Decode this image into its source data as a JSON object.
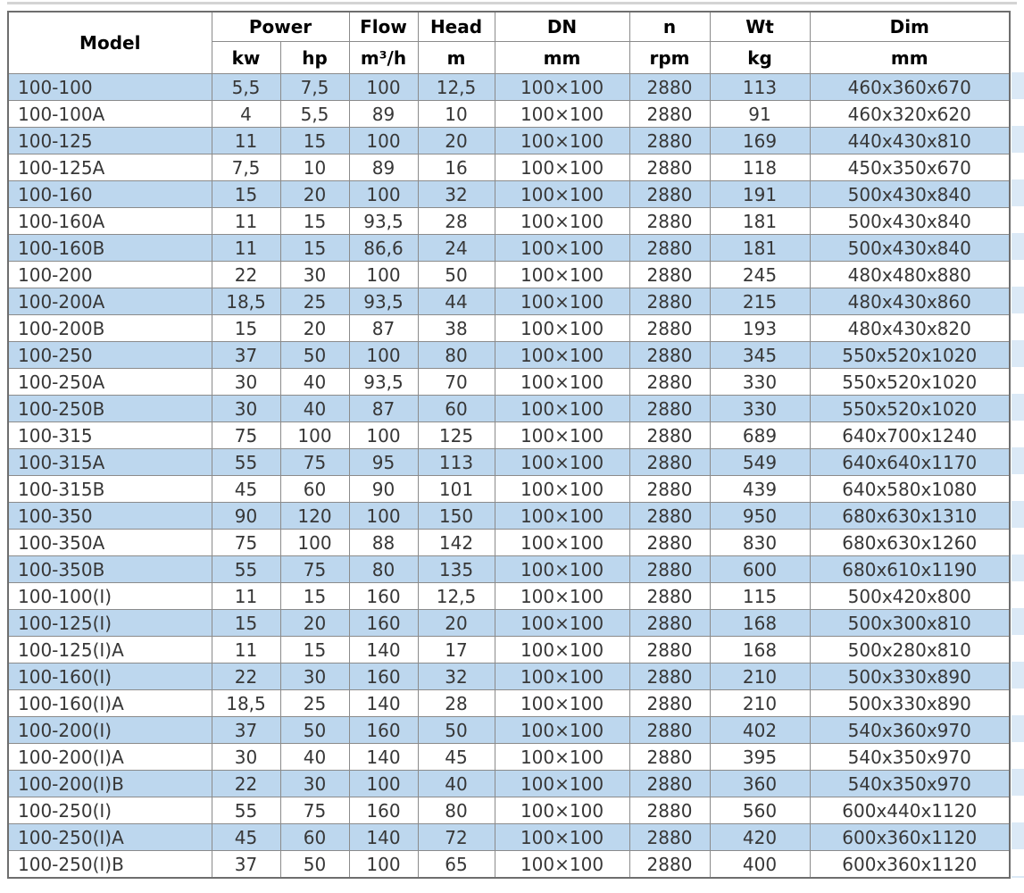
{
  "colors": {
    "row_highlight": "#BDD7EE",
    "row_plain": "#FFFFFF",
    "grid_border": "#8B8B8B",
    "outer_border": "#6E6E6E",
    "header_text": "#000000",
    "cell_text": "#373737"
  },
  "chart_data": {
    "type": "table",
    "title": "",
    "header": {
      "model": "Model",
      "power": "Power",
      "flow": "Flow",
      "head": "Head",
      "dn": "DN",
      "n": "n",
      "wt": "Wt",
      "dim": "Dim",
      "units": [
        "kw",
        "hp",
        "m³/h",
        "m",
        "mm",
        "rpm",
        "kg",
        "mm"
      ]
    },
    "column_keys": [
      "model",
      "power-kw",
      "power-hp",
      "flow",
      "head",
      "dn",
      "rpm",
      "weight",
      "dim"
    ],
    "rows": [
      [
        "100-100",
        "5,5",
        "7,5",
        "100",
        "12,5",
        "100×100",
        "2880",
        "113",
        "460x360x670"
      ],
      [
        "100-100A",
        "4",
        "5,5",
        "89",
        "10",
        "100×100",
        "2880",
        "91",
        "460x320x620"
      ],
      [
        "100-125",
        "11",
        "15",
        "100",
        "20",
        "100×100",
        "2880",
        "169",
        "440x430x810"
      ],
      [
        "100-125A",
        "7,5",
        "10",
        "89",
        "16",
        "100×100",
        "2880",
        "118",
        "450x350x670"
      ],
      [
        "100-160",
        "15",
        "20",
        "100",
        "32",
        "100×100",
        "2880",
        "191",
        "500x430x840"
      ],
      [
        "100-160A",
        "11",
        "15",
        "93,5",
        "28",
        "100×100",
        "2880",
        "181",
        "500x430x840"
      ],
      [
        "100-160B",
        "11",
        "15",
        "86,6",
        "24",
        "100×100",
        "2880",
        "181",
        "500x430x840"
      ],
      [
        "100-200",
        "22",
        "30",
        "100",
        "50",
        "100×100",
        "2880",
        "245",
        "480x480x880"
      ],
      [
        "100-200A",
        "18,5",
        "25",
        "93,5",
        "44",
        "100×100",
        "2880",
        "215",
        "480x430x860"
      ],
      [
        "100-200B",
        "15",
        "20",
        "87",
        "38",
        "100×100",
        "2880",
        "193",
        "480x430x820"
      ],
      [
        "100-250",
        "37",
        "50",
        "100",
        "80",
        "100×100",
        "2880",
        "345",
        "550x520x1020"
      ],
      [
        "100-250A",
        "30",
        "40",
        "93,5",
        "70",
        "100×100",
        "2880",
        "330",
        "550x520x1020"
      ],
      [
        "100-250B",
        "30",
        "40",
        "87",
        "60",
        "100×100",
        "2880",
        "330",
        "550x520x1020"
      ],
      [
        "100-315",
        "75",
        "100",
        "100",
        "125",
        "100×100",
        "2880",
        "689",
        "640x700x1240"
      ],
      [
        "100-315A",
        "55",
        "75",
        "95",
        "113",
        "100×100",
        "2880",
        "549",
        "640x640x1170"
      ],
      [
        "100-315B",
        "45",
        "60",
        "90",
        "101",
        "100×100",
        "2880",
        "439",
        "640x580x1080"
      ],
      [
        "100-350",
        "90",
        "120",
        "100",
        "150",
        "100×100",
        "2880",
        "950",
        "680x630x1310"
      ],
      [
        "100-350A",
        "75",
        "100",
        "88",
        "142",
        "100×100",
        "2880",
        "830",
        "680x630x1260"
      ],
      [
        "100-350B",
        "55",
        "75",
        "80",
        "135",
        "100×100",
        "2880",
        "600",
        "680x610x1190"
      ],
      [
        "100-100(I)",
        "11",
        "15",
        "160",
        "12,5",
        "100×100",
        "2880",
        "115",
        "500x420x800"
      ],
      [
        "100-125(I)",
        "15",
        "20",
        "160",
        "20",
        "100×100",
        "2880",
        "168",
        "500x300x810"
      ],
      [
        "100-125(I)A",
        "11",
        "15",
        "140",
        "17",
        "100×100",
        "2880",
        "168",
        "500x280x810"
      ],
      [
        "100-160(I)",
        "22",
        "30",
        "160",
        "32",
        "100×100",
        "2880",
        "210",
        "500x330x890"
      ],
      [
        "100-160(I)A",
        "18,5",
        "25",
        "140",
        "28",
        "100×100",
        "2880",
        "210",
        "500x330x890"
      ],
      [
        "100-200(I)",
        "37",
        "50",
        "160",
        "50",
        "100×100",
        "2880",
        "402",
        "540x360x970"
      ],
      [
        "100-200(I)A",
        "30",
        "40",
        "140",
        "45",
        "100×100",
        "2880",
        "395",
        "540x350x970"
      ],
      [
        "100-200(I)B",
        "22",
        "30",
        "100",
        "40",
        "100×100",
        "2880",
        "360",
        "540x350x970"
      ],
      [
        "100-250(I)",
        "55",
        "75",
        "160",
        "80",
        "100×100",
        "2880",
        "560",
        "600x440x1120"
      ],
      [
        "100-250(I)A",
        "45",
        "60",
        "140",
        "72",
        "100×100",
        "2880",
        "420",
        "600x360x1120"
      ],
      [
        "100-250(I)B",
        "37",
        "50",
        "100",
        "65",
        "100×100",
        "2880",
        "400",
        "600x360x1120"
      ]
    ]
  }
}
